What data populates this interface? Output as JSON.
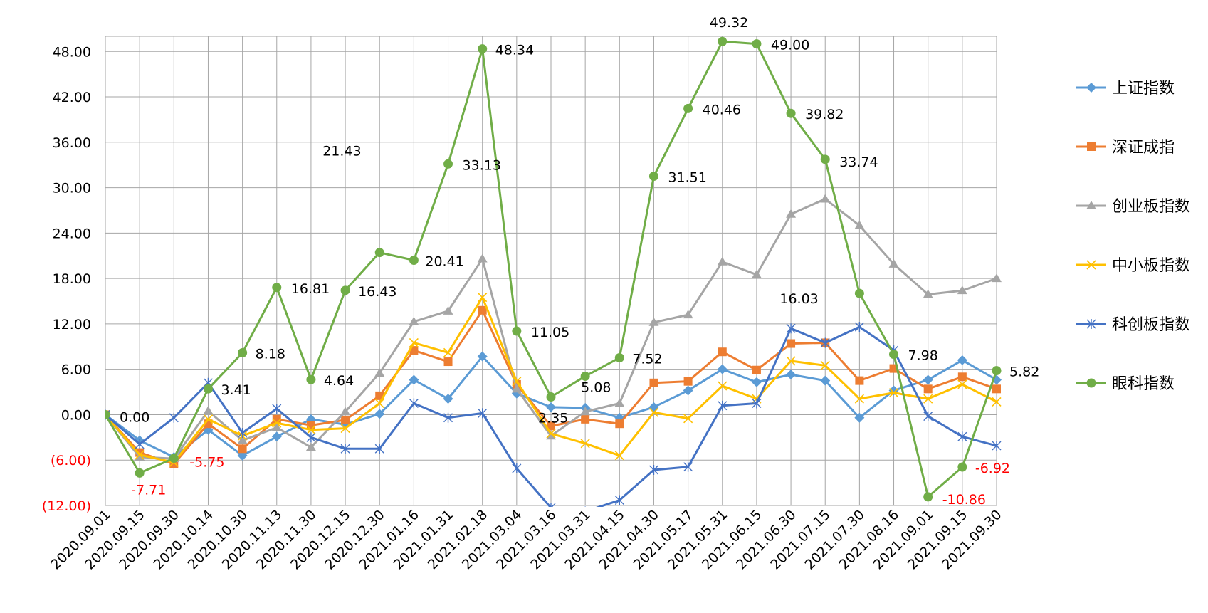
{
  "chart_data": {
    "type": "line",
    "title": "",
    "xlabel": "",
    "ylabel": "",
    "ylim": [
      -12,
      50
    ],
    "yticks": [
      -12,
      -6,
      0,
      6,
      12,
      18,
      24,
      30,
      36,
      42,
      48
    ],
    "ytick_labels": [
      "(12.00)",
      "(6.00)",
      "0.00",
      "6.00",
      "12.00",
      "18.00",
      "24.00",
      "30.00",
      "36.00",
      "42.00",
      "48.00"
    ],
    "negative_label_color": "#FF0000",
    "grid": true,
    "legend_position": "right",
    "categories": [
      "2020.09.01",
      "2020.09.15",
      "2020.09.30",
      "2020.10.14",
      "2020.10.30",
      "2020.11.13",
      "2020.11.30",
      "2020.12.15",
      "2020.12.30",
      "2021.01.16",
      "2021.01.31",
      "2021.02.18",
      "2021.03.04",
      "2021.03.16",
      "2021.03.31",
      "2021.04.15",
      "2021.04.30",
      "2021.05.17",
      "2021.05.31",
      "2021.06.15",
      "2021.06.30",
      "2021.07.15",
      "2021.07.30",
      "2021.08.16",
      "2021.09.01",
      "2021.09.15",
      "2021.09.30"
    ],
    "series": [
      {
        "name": "上证指数",
        "color": "#5B9BD5",
        "marker": "diamond",
        "values": [
          0,
          -3.4,
          -5.6,
          -2.0,
          -5.4,
          -2.9,
          -0.6,
          -1.3,
          0.1,
          4.6,
          2.1,
          7.7,
          2.8,
          1.0,
          0.9,
          -0.4,
          1.0,
          3.2,
          6.0,
          4.3,
          5.3,
          4.5,
          -0.4,
          3.2,
          4.6,
          7.2,
          4.6
        ]
      },
      {
        "name": "深证成指",
        "color": "#ED7D31",
        "marker": "square",
        "values": [
          0,
          -5.0,
          -6.5,
          -1.2,
          -4.5,
          -0.6,
          -1.4,
          -0.7,
          2.5,
          8.5,
          7.0,
          13.8,
          4.0,
          -1.5,
          -0.6,
          -1.2,
          4.2,
          4.4,
          8.3,
          5.9,
          9.4,
          9.5,
          4.5,
          6.1,
          3.4,
          5.0,
          3.4
        ]
      },
      {
        "name": "创业板指数",
        "color": "#A5A5A5",
        "marker": "triangle",
        "values": [
          0,
          -5.6,
          -5.8,
          0.5,
          -3.4,
          -1.7,
          -4.3,
          0.4,
          5.5,
          12.3,
          13.7,
          20.6,
          3.4,
          -2.8,
          0.4,
          1.5,
          12.2,
          13.2,
          20.2,
          18.5,
          26.5,
          28.5,
          25.0,
          19.9,
          15.9,
          16.4,
          18.0
        ]
      },
      {
        "name": "中小板指数",
        "color": "#FFC000",
        "marker": "x",
        "values": [
          0,
          -5.3,
          -6.3,
          -0.6,
          -2.8,
          -1.1,
          -2.0,
          -1.8,
          1.5,
          9.5,
          8.2,
          15.5,
          4.4,
          -2.5,
          -3.8,
          -5.4,
          0.3,
          -0.5,
          3.8,
          2.1,
          7.1,
          6.5,
          2.1,
          2.9,
          2.1,
          4.0,
          1.7
        ]
      },
      {
        "name": "科创板指数",
        "color": "#4472C4",
        "marker": "star",
        "values": [
          0,
          -3.9,
          -0.4,
          4.2,
          -2.4,
          0.8,
          -3.0,
          -4.5,
          -4.5,
          1.5,
          -0.4,
          0.2,
          -7.1,
          -12.3,
          -12.8,
          -11.3,
          -7.3,
          -6.9,
          1.2,
          1.5,
          11.4,
          9.5,
          11.6,
          8.5,
          -0.2,
          -2.9,
          -4.1
        ]
      },
      {
        "name": "眼科指数",
        "color": "#70AD47",
        "marker": "circle",
        "values": [
          0.0,
          -7.71,
          -5.75,
          3.41,
          8.18,
          16.81,
          4.64,
          16.43,
          21.43,
          20.41,
          33.13,
          48.34,
          11.05,
          2.35,
          5.08,
          7.52,
          31.51,
          40.46,
          49.32,
          49.0,
          39.82,
          33.74,
          16.03,
          7.98,
          -10.86,
          -6.92,
          5.82
        ],
        "data_labels": [
          "0.00",
          "-7.71",
          "-5.75",
          "3.41",
          "8.18",
          "16.81",
          "4.64",
          "16.43",
          "21.43",
          "20.41",
          "33.13",
          "48.34",
          "11.05",
          "2.35",
          "5.08",
          "7.52",
          "31.51",
          "40.46",
          "49.32",
          "49.00",
          "39.82",
          "33.74",
          "16.03",
          "7.98",
          "-10.86",
          "-6.92",
          "5.82"
        ]
      }
    ]
  }
}
